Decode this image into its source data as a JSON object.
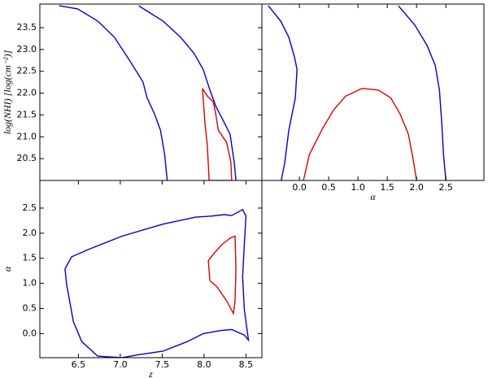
{
  "chart_data": [
    {
      "type": "line",
      "ylabel": "log(NHI) [log(cm⁻²)]",
      "xlim": [
        6.04,
        8.69
      ],
      "ylim": [
        20.0,
        24.04
      ],
      "yticks": [
        20.5,
        {
          "value": 21,
          "label": "21.0"
        },
        21.5,
        {
          "value": 22,
          "label": "22.0"
        },
        22.5,
        {
          "value": 23,
          "label": "23.0"
        },
        23.5
      ],
      "series": [
        {
          "color": "#0000cc",
          "x": [
            6.27,
            6.49,
            6.73,
            6.93,
            7.12,
            7.27,
            7.32,
            7.41,
            7.48,
            7.53,
            7.56
          ],
          "values": [
            24.0,
            23.93,
            23.65,
            23.28,
            22.72,
            22.26,
            21.89,
            21.52,
            21.15,
            20.59,
            20.0
          ]
        },
        {
          "color": "#0000cc",
          "x": [
            7.22,
            7.51,
            7.72,
            7.88,
            7.99,
            8.07,
            8.14,
            8.24,
            8.31,
            8.36,
            8.38
          ],
          "values": [
            24.0,
            23.65,
            23.28,
            22.91,
            22.54,
            22.07,
            21.7,
            21.33,
            21.06,
            20.41,
            20.0
          ]
        },
        {
          "color": "#dd0000",
          "x": [
            7.98,
            8.04,
            8.11,
            8.14,
            8.17,
            8.27,
            8.32,
            8.33,
            8.06,
            8.04,
            8.01,
            7.98
          ],
          "values": [
            22.11,
            21.93,
            21.8,
            21.52,
            21.15,
            20.87,
            20.41,
            20.0,
            20.0,
            20.78,
            21.33,
            22.11
          ]
        }
      ]
    },
    {
      "type": "line",
      "xlabel": "α",
      "xlim": [
        -0.64,
        3.15
      ],
      "ylim": [
        20.0,
        24.04
      ],
      "xticks": [
        {
          "value": 0,
          "label": "0.0"
        },
        0.5,
        {
          "value": 1,
          "label": "1.0"
        },
        1.5,
        {
          "value": 2,
          "label": "2.0"
        },
        2.5
      ],
      "series": [
        {
          "color": "#0000cc",
          "x": [
            -0.53,
            -0.32,
            -0.18,
            -0.08,
            -0.04,
            -0.07,
            -0.18,
            -0.25,
            -0.31
          ],
          "values": [
            24.0,
            23.65,
            23.28,
            22.81,
            22.54,
            21.89,
            21.15,
            20.41,
            20.0
          ]
        },
        {
          "color": "#0000cc",
          "x": [
            1.69,
            1.97,
            2.18,
            2.32,
            2.39,
            2.43,
            2.46,
            2.5
          ],
          "values": [
            24.0,
            23.56,
            23.09,
            22.63,
            22.07,
            21.33,
            20.59,
            20.0
          ]
        },
        {
          "color": "#dd0000",
          "x": [
            0.07,
            0.17,
            0.38,
            0.58,
            0.79,
            1.07,
            1.35,
            1.56,
            1.72,
            1.86,
            1.94,
            2.0
          ],
          "values": [
            20.0,
            20.59,
            21.15,
            21.61,
            21.93,
            22.11,
            22.07,
            21.89,
            21.52,
            21.06,
            20.5,
            20.0
          ]
        }
      ]
    },
    {
      "type": "line",
      "xlabel": "z",
      "ylabel": "α",
      "xlim": [
        6.04,
        8.69
      ],
      "ylim": [
        -0.48,
        3.05
      ],
      "xticks": [
        6.5,
        {
          "value": 7,
          "label": "7.0"
        },
        7.5,
        {
          "value": 8,
          "label": "8.0"
        },
        8.5
      ],
      "yticks": [
        {
          "value": 0,
          "label": "0.0"
        },
        0.5,
        {
          "value": 1,
          "label": "1.0"
        },
        1.5,
        {
          "value": 2,
          "label": "2.0"
        },
        2.5
      ],
      "series": [
        {
          "color": "#0000cc",
          "x": [
            6.34,
            6.42,
            6.64,
            7.02,
            7.51,
            7.9,
            8.09,
            8.24,
            8.33,
            8.46,
            8.5,
            8.48,
            8.46,
            8.48,
            8.53,
            8.48,
            8.33,
            8.19,
            7.99,
            7.8,
            7.51,
            7.22,
            7.02,
            6.73,
            6.54,
            6.44,
            6.36,
            6.34
          ],
          "values": [
            1.29,
            1.53,
            1.69,
            1.94,
            2.18,
            2.32,
            2.34,
            2.37,
            2.35,
            2.47,
            2.34,
            1.77,
            1.13,
            0.48,
            -0.13,
            -0.03,
            0.08,
            0.06,
            0.0,
            -0.16,
            -0.35,
            -0.42,
            -0.48,
            -0.45,
            -0.16,
            0.24,
            0.97,
            1.29
          ]
        },
        {
          "color": "#dd0000",
          "x": [
            8.07,
            8.05,
            8.11,
            8.21,
            8.31,
            8.37,
            8.38,
            8.37,
            8.35,
            8.27,
            8.15,
            8.07
          ],
          "values": [
            1.05,
            1.45,
            1.58,
            1.77,
            1.9,
            1.94,
            1.29,
            0.65,
            0.4,
            0.65,
            0.94,
            1.05
          ]
        }
      ]
    }
  ]
}
